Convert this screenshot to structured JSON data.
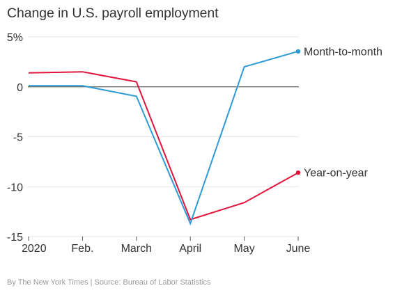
{
  "title": "Change in U.S. payroll employment",
  "credit": "By The New York Times | Source: Bureau of Labor Statistics",
  "chart_data": {
    "type": "line",
    "title": "Change in U.S. payroll employment",
    "xlabel": "",
    "ylabel": "",
    "categories": [
      "2020",
      "Feb.",
      "March",
      "April",
      "May",
      "June"
    ],
    "ylim": [
      -15,
      5
    ],
    "yticks": [
      5,
      0,
      -5,
      -10,
      -15
    ],
    "ytick_labels": [
      "5%",
      "0",
      "-5",
      "-10",
      "-15"
    ],
    "grid": true,
    "series": [
      {
        "name": "Year-on-year",
        "color": "#e0143c",
        "values": [
          1.4,
          1.5,
          0.5,
          -13.3,
          -11.6,
          -8.6
        ]
      },
      {
        "name": "Month-to-month",
        "color": "#2d9ad8",
        "values": [
          0.1,
          0.1,
          -0.95,
          -13.7,
          2.0,
          3.55
        ]
      }
    ],
    "legend": "direct labels at line ends (right)"
  }
}
